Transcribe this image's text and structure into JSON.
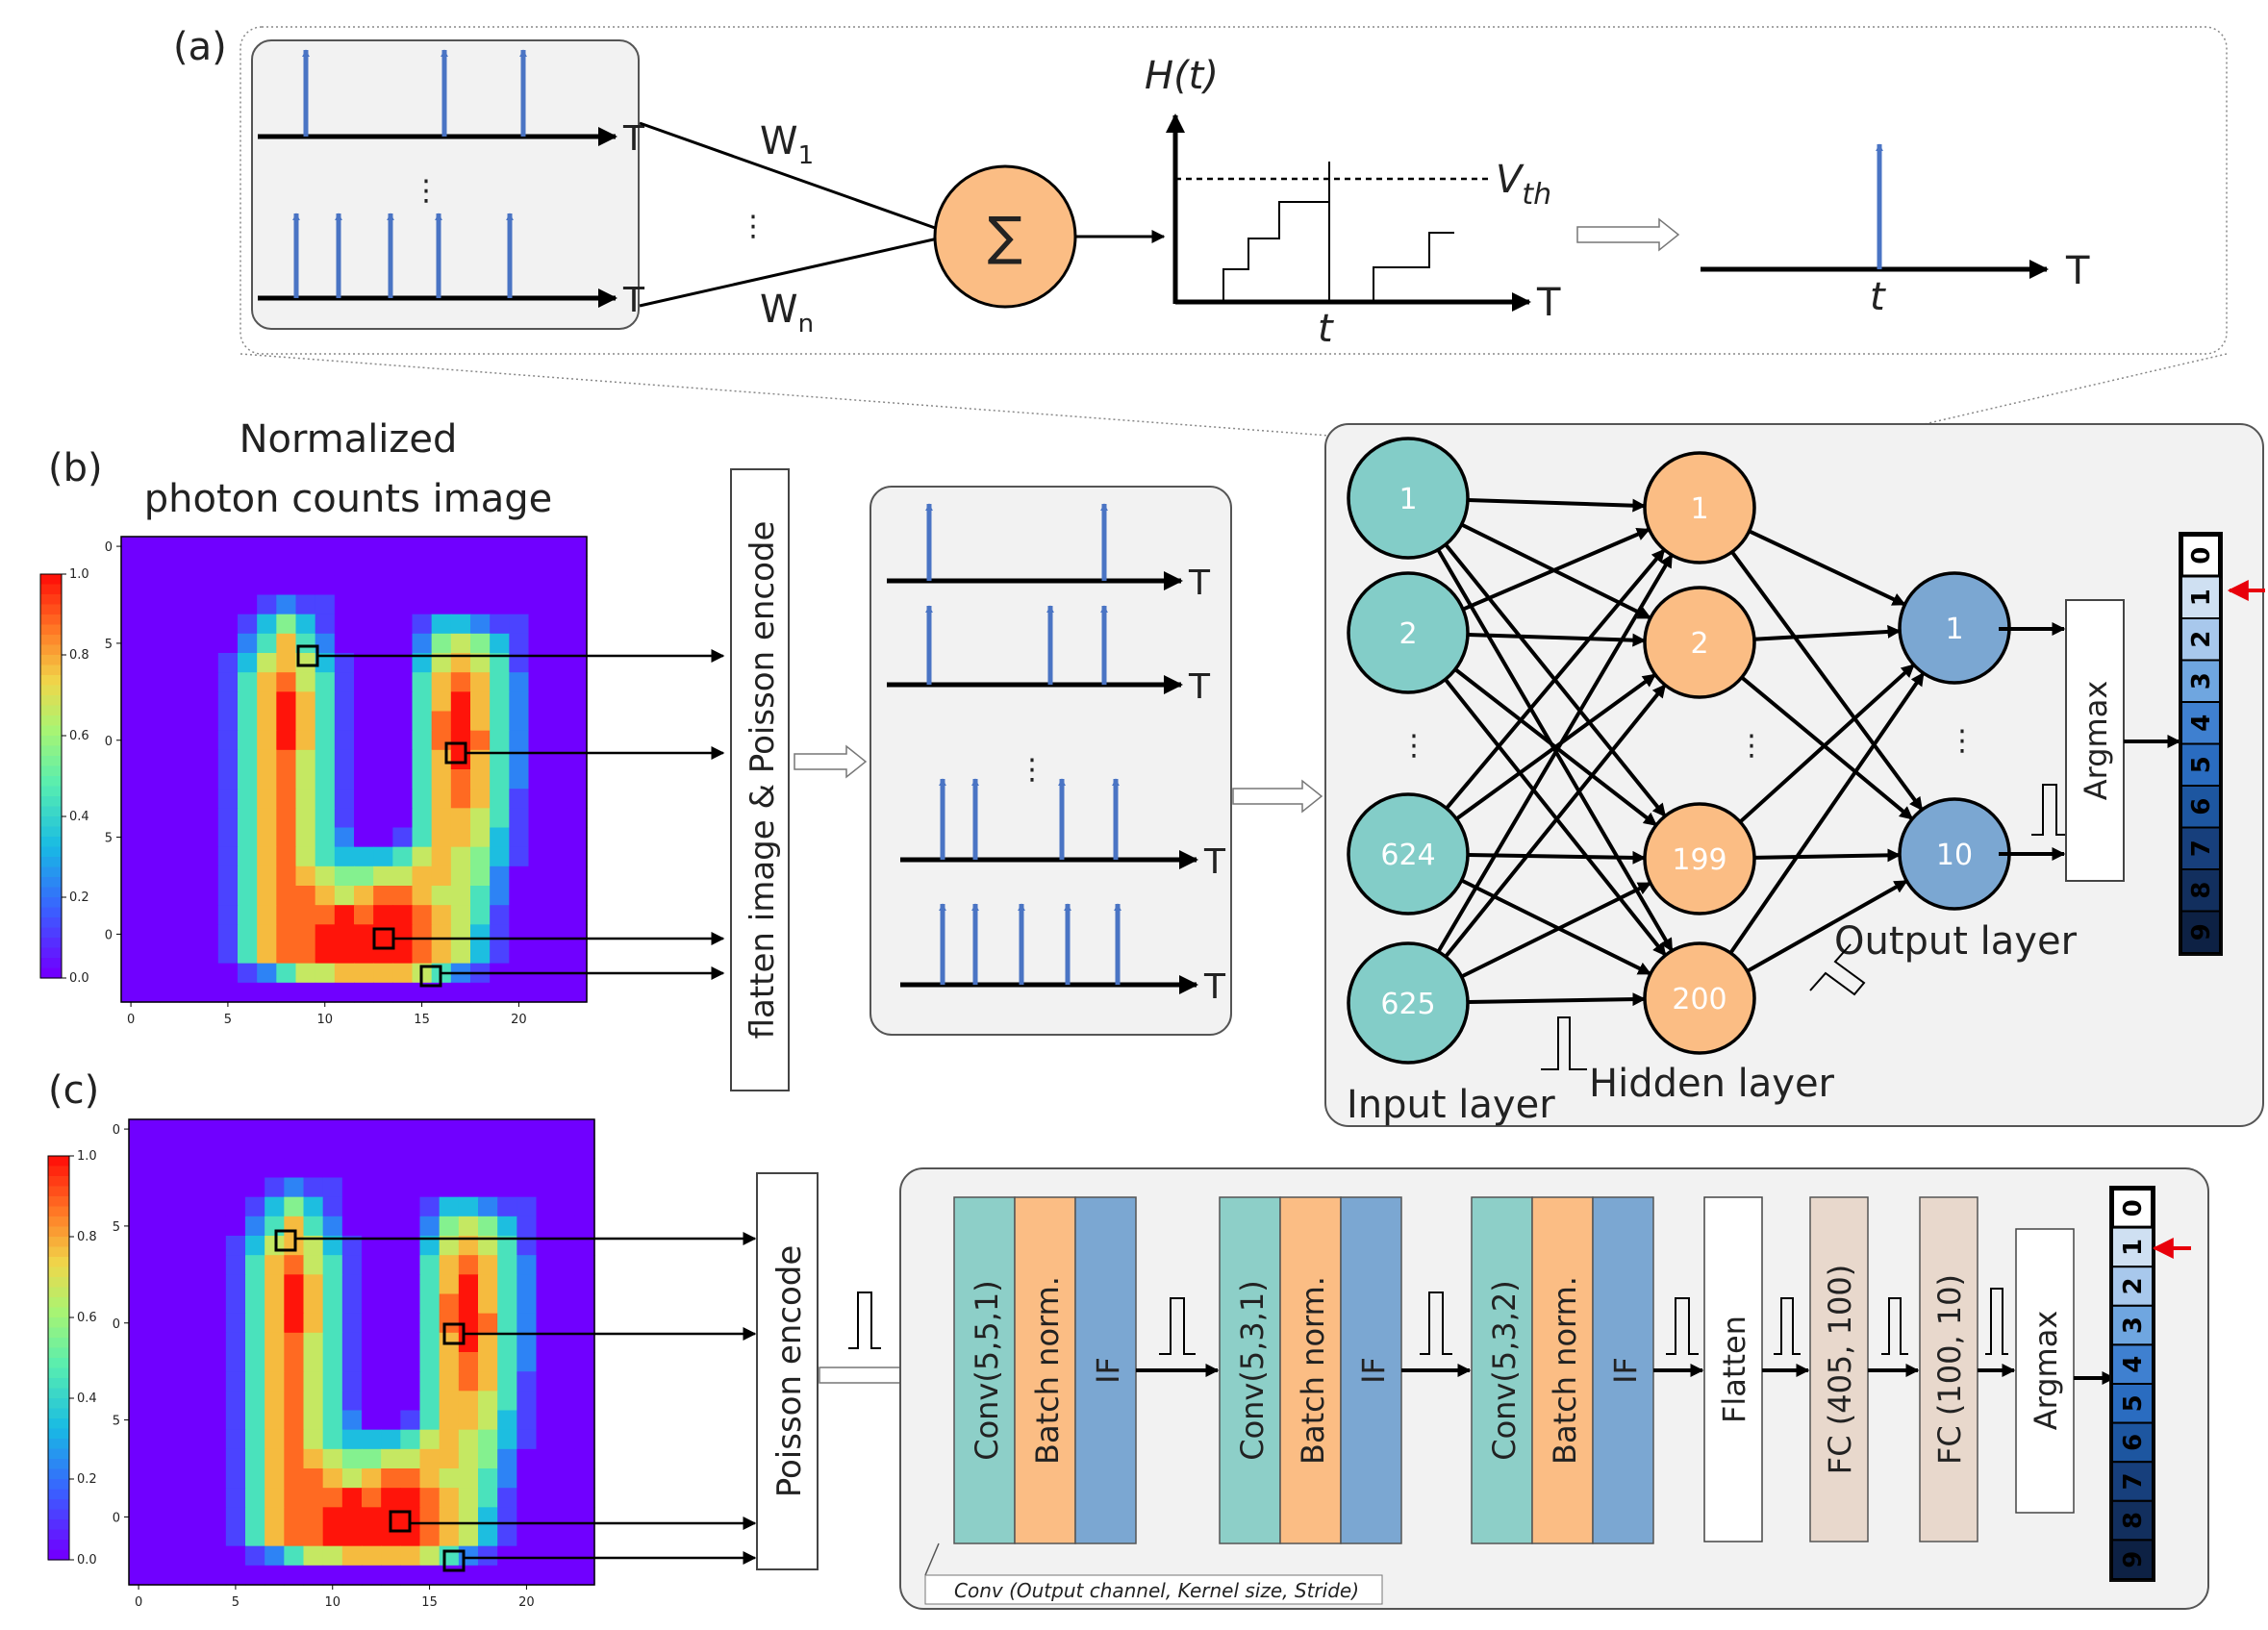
{
  "panel_a": {
    "label": "(a)",
    "axis_symbol": "T",
    "weight_first": "W",
    "weight_first_sub": "1",
    "weight_last": "W",
    "weight_last_sub": "n",
    "sum_symbol": "∑",
    "membrane_label": "H(t)",
    "threshold_label": "V",
    "threshold_sub": "th",
    "time_label": "t",
    "dots": "⋮"
  },
  "panel_b": {
    "label": "(b)",
    "image_title_line1": "Normalized",
    "image_title_line2": "photon counts image",
    "encode_box": "flatten image & Poisson encode",
    "axis_symbol": "T",
    "dots": "⋮",
    "input_nodes": [
      "1",
      "2",
      "624",
      "625"
    ],
    "hidden_nodes": [
      "1",
      "2",
      "199",
      "200"
    ],
    "output_nodes": [
      "1",
      "10"
    ],
    "input_layer_label": "Input layer",
    "hidden_layer_label": "Hidden layer",
    "output_layer_label": "Output layer",
    "argmax_label": "Argmax",
    "digits": [
      "0",
      "1",
      "2",
      "3",
      "4",
      "5",
      "6",
      "7",
      "8",
      "9"
    ]
  },
  "panel_c": {
    "label": "(c)",
    "encode_box": "Poisson encode",
    "blocks": [
      [
        "Conv(5,5,1)",
        "Batch norm.",
        "IF"
      ],
      [
        "Conv(5,3,1)",
        "Batch norm.",
        "IF"
      ],
      [
        "Conv(5,3,2)",
        "Batch norm.",
        "IF"
      ]
    ],
    "flatten_label": "Flatten",
    "fc1_label": "FC (405, 100)",
    "fc2_label": "FC (100, 10)",
    "argmax_label": "Argmax",
    "conv_caption": "Conv (Output channel, Kernel size, Stride)",
    "digits": [
      "0",
      "1",
      "2",
      "3",
      "4",
      "5",
      "6",
      "7",
      "8",
      "9"
    ]
  },
  "heatmap": {
    "colorbar_ticks": [
      "1.0",
      "0.8",
      "0.6",
      "0.4",
      "0.2",
      "0.0"
    ],
    "x_ticks": [
      "0",
      "5",
      "10",
      "15",
      "20"
    ],
    "y_ticks": [
      "0",
      "5",
      "0",
      "5",
      "0"
    ],
    "rows": [
      "000000000000000000000000",
      "000000000000000000000000",
      "000000000000000000000000",
      "000000012110000000000000",
      "000000135310000133211000",
      "000000247420000256531000",
      "000001367631000367641000",
      "000001478641000478742000",
      "000001479741000479742000",
      "000001479741000489742000",
      "000001479741000489842000",
      "000001478641000479742000",
      "000001478641000478742000",
      "000001478641000478741000",
      "000001478641000477641000",
      "000001478642001477631000",
      "000001478643334676531000",
      "000001478765566776520000",
      "000001478876788766420000",
      "000001478889899876410000",
      "000001478899999876310000",
      "000001478899999876310000",
      "000000124667777642100000",
      "000000000000000000000000"
    ]
  },
  "colors": {
    "spike_blue": "#4a74c4",
    "input_node": "#83cdc8",
    "hidden_node": "#fbbd84",
    "output_node": "#7ba7d2",
    "sum_node": "#fbbd84",
    "conv_block": "#8dcfc8",
    "bn_block": "#fbbd84",
    "if_block": "#7ba7d2",
    "fc_block": "#e8d8cc",
    "panel_bg": "#f2f2f2",
    "highlight_arrow": "#e8000b"
  }
}
